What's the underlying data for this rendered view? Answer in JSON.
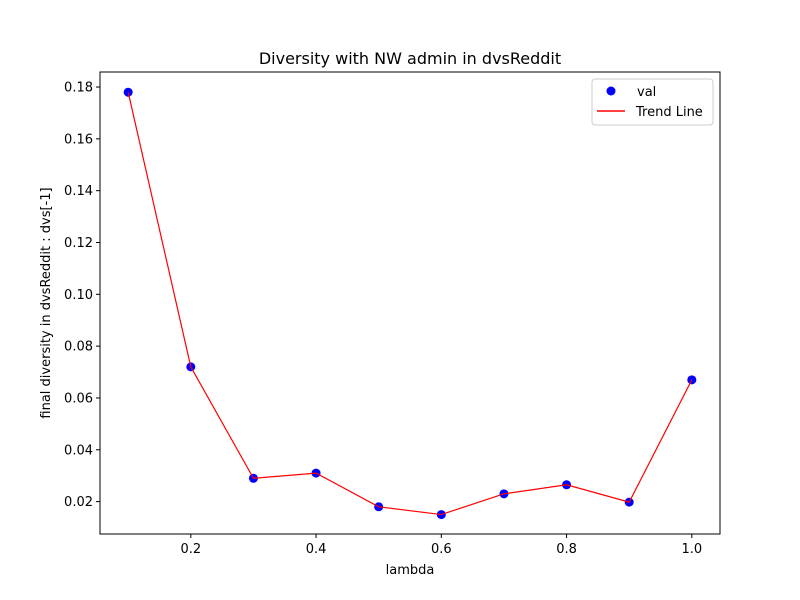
{
  "chart_data": {
    "type": "scatter",
    "title": "Diversity with NW admin in dvsReddit",
    "xlabel": "lambda",
    "ylabel": "final diversity in dvsReddit : dvs[-1]",
    "xlim": [
      0.055,
      1.045
    ],
    "ylim": [
      0.0075,
      0.1858
    ],
    "x_ticks": [
      0.2,
      0.4,
      0.6,
      0.8,
      1.0
    ],
    "x_tick_labels": [
      "0.2",
      "0.4",
      "0.6",
      "0.8",
      "1.0"
    ],
    "y_ticks": [
      0.02,
      0.04,
      0.06,
      0.08,
      0.1,
      0.12,
      0.14,
      0.16,
      0.18
    ],
    "y_tick_labels": [
      "0.02",
      "0.04",
      "0.06",
      "0.08",
      "0.10",
      "0.12",
      "0.14",
      "0.16",
      "0.18"
    ],
    "grid": false,
    "legend_position": "top-right",
    "series": [
      {
        "name": "val",
        "kind": "scatter",
        "color": "#0000ff",
        "x": [
          0.1,
          0.2,
          0.3,
          0.4,
          0.5,
          0.6,
          0.7,
          0.8,
          0.9,
          1.0
        ],
        "y": [
          0.178,
          0.072,
          0.029,
          0.031,
          0.018,
          0.015,
          0.023,
          0.0265,
          0.0198,
          0.067
        ]
      },
      {
        "name": "Trend Line",
        "kind": "line",
        "color": "#ff0000",
        "x": [
          0.1,
          0.2,
          0.3,
          0.4,
          0.5,
          0.6,
          0.7,
          0.8,
          0.9,
          1.0
        ],
        "y": [
          0.178,
          0.072,
          0.029,
          0.031,
          0.018,
          0.015,
          0.023,
          0.0265,
          0.0198,
          0.067
        ]
      }
    ]
  }
}
